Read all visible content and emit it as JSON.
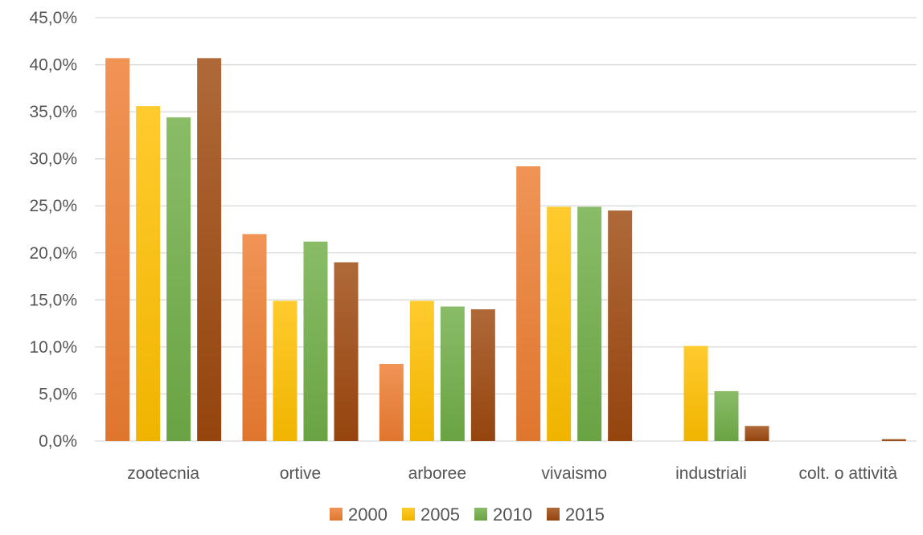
{
  "chart_data": {
    "type": "bar",
    "title": "",
    "xlabel": "",
    "ylabel": "",
    "categories": [
      "zootecnia",
      "ortive",
      "arboree",
      "vivaismo",
      "industriali",
      "colt. o attività"
    ],
    "series": [
      {
        "name": "2000",
        "values": [
          40.7,
          22.0,
          8.2,
          29.2,
          0.0,
          0.0
        ],
        "color": "#ed7d31"
      },
      {
        "name": "2005",
        "values": [
          35.6,
          14.9,
          14.9,
          24.9,
          10.1,
          0.0
        ],
        "color": "#ffc000"
      },
      {
        "name": "2010",
        "values": [
          34.4,
          21.2,
          14.3,
          24.9,
          5.3,
          0.0
        ],
        "color": "#70ad47"
      },
      {
        "name": "2015",
        "values": [
          40.7,
          19.0,
          14.0,
          24.5,
          1.6,
          0.2
        ],
        "color": "#9e480e"
      }
    ],
    "ylim": [
      0,
      45
    ],
    "y_ticks": [
      "0,0%",
      "5,0%",
      "10,0%",
      "15,0%",
      "20,0%",
      "25,0%",
      "30,0%",
      "35,0%",
      "40,0%",
      "45,0%"
    ],
    "grid": true,
    "legend_position": "bottom"
  }
}
